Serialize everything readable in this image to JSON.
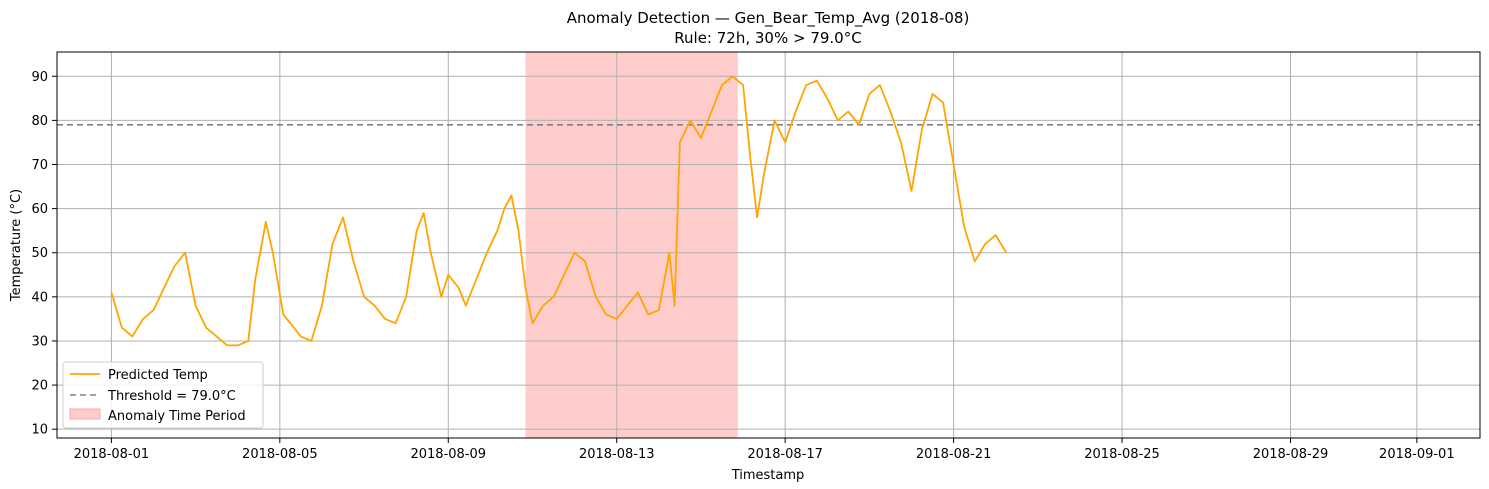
{
  "chart_data": {
    "type": "line",
    "title": "Anomaly Detection — Gen_Bear_Temp_Avg (2018-08)",
    "subtitle": "Rule: 72h, 30% > 79.0°C",
    "xlabel": "Timestamp",
    "ylabel": "Temperature (°C)",
    "xlim": [
      "2018-07-30T17:00",
      "2018-09-02T12:00"
    ],
    "ylim": [
      8,
      95.5
    ],
    "x_ticks": [
      "2018-08-01",
      "2018-08-05",
      "2018-08-09",
      "2018-08-13",
      "2018-08-17",
      "2018-08-21",
      "2018-08-25",
      "2018-08-29",
      "2018-09-01"
    ],
    "y_ticks": [
      10,
      20,
      30,
      40,
      50,
      60,
      70,
      80,
      90
    ],
    "grid": true,
    "legend_position": "lower-left",
    "threshold": {
      "value": 79.0,
      "label": "Threshold = 79.0°C",
      "color": "#808080",
      "style": "dashed"
    },
    "anomaly_period": {
      "start": "2018-08-10T20:00",
      "end": "2018-08-15T21:00",
      "label": "Anomaly Time Period",
      "color": "#ffcccc"
    },
    "series": [
      {
        "name": "Predicted Temp",
        "color": "#ffa500",
        "points": [
          [
            "2018-08-01T00:00",
            41
          ],
          [
            "2018-08-01T06:00",
            33
          ],
          [
            "2018-08-01T12:00",
            31
          ],
          [
            "2018-08-01T18:00",
            35
          ],
          [
            "2018-08-02T00:00",
            37
          ],
          [
            "2018-08-02T06:00",
            42
          ],
          [
            "2018-08-02T12:00",
            47
          ],
          [
            "2018-08-02T18:00",
            50
          ],
          [
            "2018-08-03T00:00",
            38
          ],
          [
            "2018-08-03T06:00",
            33
          ],
          [
            "2018-08-03T12:00",
            31
          ],
          [
            "2018-08-03T18:00",
            29
          ],
          [
            "2018-08-04T00:00",
            29
          ],
          [
            "2018-08-04T06:00",
            30
          ],
          [
            "2018-08-04T10:00",
            44
          ],
          [
            "2018-08-04T16:00",
            57
          ],
          [
            "2018-08-04T20:00",
            50
          ],
          [
            "2018-08-05T02:00",
            36
          ],
          [
            "2018-08-05T08:00",
            33
          ],
          [
            "2018-08-05T12:00",
            31
          ],
          [
            "2018-08-05T18:00",
            30
          ],
          [
            "2018-08-06T00:00",
            38
          ],
          [
            "2018-08-06T06:00",
            52
          ],
          [
            "2018-08-06T12:00",
            58
          ],
          [
            "2018-08-06T18:00",
            48
          ],
          [
            "2018-08-07T00:00",
            40
          ],
          [
            "2018-08-07T06:00",
            38
          ],
          [
            "2018-08-07T12:00",
            35
          ],
          [
            "2018-08-07T18:00",
            34
          ],
          [
            "2018-08-08T00:00",
            40
          ],
          [
            "2018-08-08T06:00",
            55
          ],
          [
            "2018-08-08T10:00",
            59
          ],
          [
            "2018-08-08T14:00",
            50
          ],
          [
            "2018-08-08T20:00",
            40
          ],
          [
            "2018-08-09T00:00",
            45
          ],
          [
            "2018-08-09T06:00",
            42
          ],
          [
            "2018-08-09T10:00",
            38
          ],
          [
            "2018-08-09T16:00",
            44
          ],
          [
            "2018-08-09T22:00",
            50
          ],
          [
            "2018-08-10T04:00",
            55
          ],
          [
            "2018-08-10T08:00",
            60
          ],
          [
            "2018-08-10T12:00",
            63
          ],
          [
            "2018-08-10T16:00",
            55
          ],
          [
            "2018-08-10T20:00",
            42
          ],
          [
            "2018-08-11T00:00",
            34
          ],
          [
            "2018-08-11T06:00",
            38
          ],
          [
            "2018-08-11T12:00",
            40
          ],
          [
            "2018-08-11T18:00",
            45
          ],
          [
            "2018-08-12T00:00",
            50
          ],
          [
            "2018-08-12T06:00",
            48
          ],
          [
            "2018-08-12T12:00",
            40
          ],
          [
            "2018-08-12T18:00",
            36
          ],
          [
            "2018-08-13T00:00",
            35
          ],
          [
            "2018-08-13T06:00",
            38
          ],
          [
            "2018-08-13T12:00",
            41
          ],
          [
            "2018-08-13T18:00",
            36
          ],
          [
            "2018-08-14T00:00",
            37
          ],
          [
            "2018-08-14T06:00",
            50
          ],
          [
            "2018-08-14T09:00",
            38
          ],
          [
            "2018-08-14T12:00",
            75
          ],
          [
            "2018-08-14T18:00",
            80
          ],
          [
            "2018-08-15T00:00",
            76
          ],
          [
            "2018-08-15T06:00",
            82
          ],
          [
            "2018-08-15T12:00",
            88
          ],
          [
            "2018-08-15T18:00",
            90
          ],
          [
            "2018-08-16T00:00",
            88
          ],
          [
            "2018-08-16T04:00",
            72
          ],
          [
            "2018-08-16T08:00",
            58
          ],
          [
            "2018-08-16T12:00",
            68
          ],
          [
            "2018-08-16T18:00",
            80
          ],
          [
            "2018-08-17T00:00",
            75
          ],
          [
            "2018-08-17T06:00",
            82
          ],
          [
            "2018-08-17T12:00",
            88
          ],
          [
            "2018-08-17T18:00",
            89
          ],
          [
            "2018-08-18T00:00",
            85
          ],
          [
            "2018-08-18T06:00",
            80
          ],
          [
            "2018-08-18T12:00",
            82
          ],
          [
            "2018-08-18T18:00",
            79
          ],
          [
            "2018-08-19T00:00",
            86
          ],
          [
            "2018-08-19T06:00",
            88
          ],
          [
            "2018-08-19T12:00",
            82
          ],
          [
            "2018-08-19T18:00",
            75
          ],
          [
            "2018-08-20T00:00",
            64
          ],
          [
            "2018-08-20T06:00",
            78
          ],
          [
            "2018-08-20T12:00",
            86
          ],
          [
            "2018-08-20T18:00",
            84
          ],
          [
            "2018-08-21T00:00",
            70
          ],
          [
            "2018-08-21T06:00",
            56
          ],
          [
            "2018-08-21T12:00",
            48
          ],
          [
            "2018-08-21T18:00",
            52
          ],
          [
            "2018-08-22T00:00",
            54
          ],
          [
            "2018-08-22T06:00",
            50
          ]
        ]
      }
    ]
  },
  "legend": {
    "items": [
      {
        "label": "Predicted Temp"
      },
      {
        "label": "Threshold = 79.0°C"
      },
      {
        "label": "Anomaly Time Period"
      }
    ]
  }
}
